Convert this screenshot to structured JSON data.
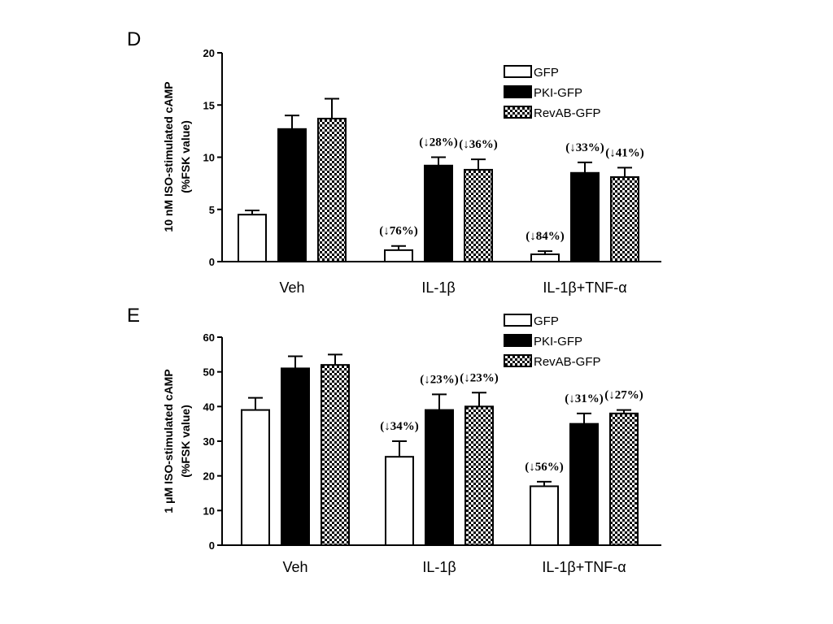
{
  "chart_data": [
    {
      "type": "bar",
      "panel": "D",
      "ylabel_line1": "10 nM ISO-stimulated cAMP",
      "ylabel_line2": "(%FSK value)",
      "ylim": [
        0,
        20
      ],
      "yticks": [
        0,
        5,
        10,
        15,
        20
      ],
      "categories": [
        "Veh",
        "IL-1β",
        "IL-1β+TNF-α"
      ],
      "series": [
        {
          "name": "GFP",
          "fill": "white",
          "values": [
            4.5,
            1.1,
            0.7
          ],
          "errors": [
            0.4,
            0.4,
            0.3
          ]
        },
        {
          "name": "PKI-GFP",
          "fill": "black",
          "values": [
            12.7,
            9.2,
            8.5
          ],
          "errors": [
            1.3,
            0.8,
            1.0
          ]
        },
        {
          "name": "RevAB-GFP",
          "fill": "checker",
          "values": [
            13.7,
            8.8,
            8.1
          ],
          "errors": [
            1.9,
            1.0,
            0.9
          ]
        }
      ],
      "annotations": [
        {
          "category": 1,
          "series": 0,
          "text": "(↓76%)"
        },
        {
          "category": 1,
          "series": 1,
          "text": "(↓28%)"
        },
        {
          "category": 1,
          "series": 2,
          "text": "(↓36%)"
        },
        {
          "category": 2,
          "series": 0,
          "text": "(↓84%)"
        },
        {
          "category": 2,
          "series": 1,
          "text": "(↓33%)"
        },
        {
          "category": 2,
          "series": 2,
          "text": "(↓41%)"
        }
      ],
      "legend": "top-right"
    },
    {
      "type": "bar",
      "panel": "E",
      "ylabel_line1": "1 μM ISO-stimulated cAMP",
      "ylabel_line2": "(%FSK value)",
      "ylim": [
        0,
        60
      ],
      "yticks": [
        0,
        10,
        20,
        30,
        40,
        50,
        60
      ],
      "categories": [
        "Veh",
        "IL-1β",
        "IL-1β+TNF-α"
      ],
      "series": [
        {
          "name": "GFP",
          "fill": "white",
          "values": [
            39,
            25.5,
            17
          ],
          "errors": [
            3.5,
            4.5,
            1.3
          ]
        },
        {
          "name": "PKI-GFP",
          "fill": "black",
          "values": [
            51,
            39,
            35
          ],
          "errors": [
            3.5,
            4.5,
            3.0
          ]
        },
        {
          "name": "RevAB-GFP",
          "fill": "checker",
          "values": [
            52,
            40,
            38
          ],
          "errors": [
            3.0,
            4.0,
            1.0
          ]
        }
      ],
      "annotations": [
        {
          "category": 1,
          "series": 0,
          "text": "(↓34%)"
        },
        {
          "category": 1,
          "series": 1,
          "text": "(↓23%)"
        },
        {
          "category": 1,
          "series": 2,
          "text": "(↓23%)"
        },
        {
          "category": 2,
          "series": 0,
          "text": "(↓56%)"
        },
        {
          "category": 2,
          "series": 1,
          "text": "(↓31%)"
        },
        {
          "category": 2,
          "series": 2,
          "text": "(↓27%)"
        }
      ],
      "legend": "top-right"
    }
  ]
}
